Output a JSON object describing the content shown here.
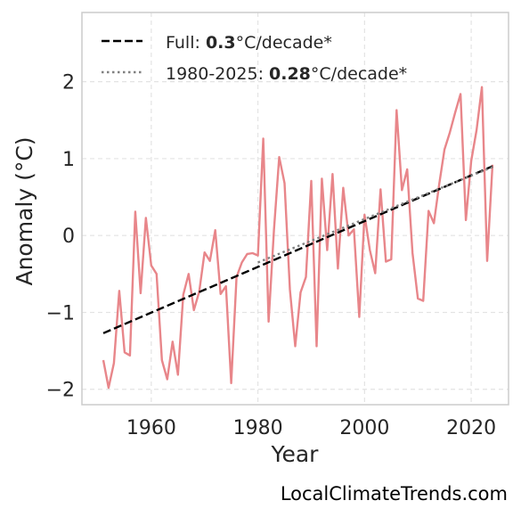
{
  "chart_data": {
    "type": "line",
    "xlabel": "Year",
    "ylabel": "Anomaly (°C)",
    "xlim": [
      1947,
      2027
    ],
    "ylim": [
      -2.2,
      2.9
    ],
    "x_ticks": [
      1960,
      1980,
      2000,
      2020
    ],
    "y_ticks": [
      -2,
      -1,
      0,
      1,
      2
    ],
    "y_tick_labels": [
      "−2",
      "−1",
      "0",
      "1",
      "2"
    ],
    "grid": true,
    "legend_position": "top-left",
    "series": [
      {
        "style": "solid",
        "color": "#e8868a",
        "x": [
          1951,
          1952,
          1953,
          1954,
          1955,
          1956,
          1957,
          1958,
          1959,
          1960,
          1961,
          1962,
          1963,
          1964,
          1965,
          1966,
          1967,
          1968,
          1969,
          1970,
          1971,
          1972,
          1973,
          1974,
          1975,
          1976,
          1977,
          1978,
          1979,
          1980,
          1981,
          1982,
          1983,
          1984,
          1985,
          1986,
          1987,
          1988,
          1989,
          1990,
          1991,
          1992,
          1993,
          1994,
          1995,
          1996,
          1997,
          1998,
          1999,
          2000,
          2001,
          2002,
          2003,
          2004,
          2005,
          2006,
          2007,
          2008,
          2009,
          2010,
          2011,
          2012,
          2013,
          2014,
          2015,
          2016,
          2017,
          2018,
          2019,
          2020,
          2021,
          2022,
          2023,
          2024
        ],
        "y": [
          -1.62,
          -1.98,
          -1.66,
          -0.72,
          -1.52,
          -1.56,
          0.31,
          -0.75,
          0.23,
          -0.39,
          -0.5,
          -1.62,
          -1.87,
          -1.38,
          -1.81,
          -0.77,
          -0.5,
          -0.97,
          -0.73,
          -0.22,
          -0.33,
          0.07,
          -0.76,
          -0.66,
          -1.92,
          -0.54,
          -0.35,
          -0.24,
          -0.23,
          -0.26,
          1.26,
          -1.12,
          0.07,
          1.02,
          0.68,
          -0.7,
          -1.44,
          -0.74,
          -0.54,
          0.71,
          -1.44,
          0.74,
          -0.19,
          0.8,
          -0.43,
          0.62,
          0.0,
          0.08,
          -1.06,
          0.27,
          -0.19,
          -0.49,
          0.6,
          -0.34,
          -0.31,
          1.63,
          0.59,
          0.86,
          -0.23,
          -0.82,
          -0.85,
          0.32,
          0.16,
          0.67,
          1.12,
          1.34,
          1.6,
          1.84,
          0.2,
          0.97,
          1.37,
          1.93,
          -0.33,
          0.92
        ]
      },
      {
        "name": "Full",
        "style": "dashed",
        "color": "#000000",
        "x": [
          1951,
          2024
        ],
        "y": [
          -1.27,
          0.9
        ]
      },
      {
        "name": "1980-2025",
        "style": "dotted",
        "color": "#808080",
        "x": [
          1980,
          2024
        ],
        "y": [
          -0.35,
          0.89
        ]
      }
    ],
    "legend": [
      {
        "prefix": "Full: ",
        "value": "0.3",
        "suffix": "°C/decade*"
      },
      {
        "prefix": "1980-2025: ",
        "value": "0.28",
        "suffix": "°C/decade*"
      }
    ],
    "watermark": "LocalClimateTrends.com"
  }
}
